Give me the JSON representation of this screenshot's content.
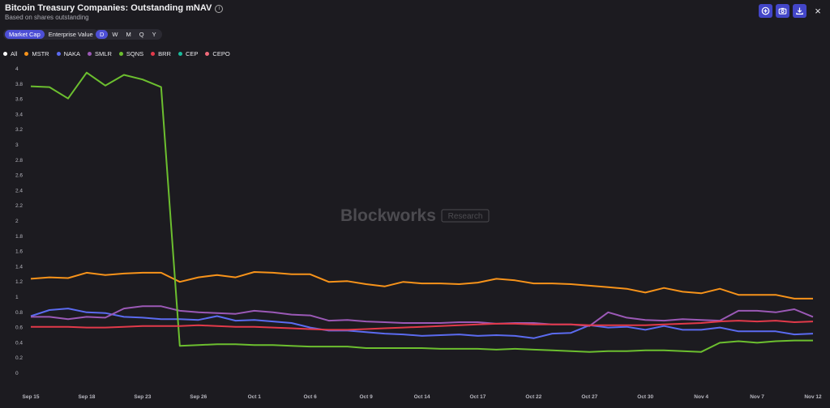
{
  "header": {
    "title": "Bitcoin Treasury Companies: Outstanding mNAV",
    "subtitle": "Based on shares outstanding"
  },
  "toolbar": {
    "icons": [
      "plus-circle-icon",
      "camera-icon",
      "download-icon",
      "close-icon"
    ],
    "close_label": "×"
  },
  "valuation_toggle": {
    "options": [
      "Market Cap",
      "Enterprise Value"
    ],
    "selected": "Market Cap"
  },
  "period_toggle": {
    "options": [
      "D",
      "W",
      "M",
      "Q",
      "Y"
    ],
    "selected": "D"
  },
  "legend_all": {
    "label": "All",
    "color": "#ffffff"
  },
  "watermark": {
    "brand": "Blockworks",
    "tag": "Research"
  },
  "chart_data": {
    "type": "line",
    "title": "Bitcoin Treasury Companies: Outstanding mNAV",
    "subtitle": "Based on shares outstanding",
    "ylim": [
      0,
      4
    ],
    "yticks": [
      "0",
      "0.2",
      "0.4",
      "0.6",
      "0.8",
      "1",
      "1.2",
      "1.4",
      "1.6",
      "1.8",
      "2",
      "2.2",
      "2.4",
      "2.6",
      "2.8",
      "3",
      "3.2",
      "3.4",
      "3.6",
      "3.8",
      "4"
    ],
    "x_tick_labels": [
      "Sep 15",
      "Sep 18",
      "Sep 23",
      "Sep 26",
      "Oct 1",
      "Oct 6",
      "Oct 9",
      "Oct 14",
      "Oct 17",
      "Oct 22",
      "Oct 27",
      "Oct 30",
      "Nov 4",
      "Nov 7",
      "Nov 12"
    ],
    "x_tick_indices": [
      0,
      3,
      6,
      9,
      12,
      15,
      18,
      21,
      24,
      27,
      30,
      33,
      36,
      39,
      42
    ],
    "n_points": 43,
    "grid": false,
    "legend_position": "top-left",
    "series": [
      {
        "name": "MSTR",
        "color": "#f7931a",
        "values": [
          1.24,
          1.26,
          1.25,
          1.32,
          1.29,
          1.31,
          1.32,
          1.32,
          1.2,
          1.26,
          1.29,
          1.26,
          1.33,
          1.32,
          1.3,
          1.3,
          1.2,
          1.21,
          1.17,
          1.14,
          1.2,
          1.18,
          1.18,
          1.17,
          1.19,
          1.24,
          1.22,
          1.18,
          1.18,
          1.17,
          1.15,
          1.13,
          1.11,
          1.06,
          1.12,
          1.07,
          1.05,
          1.11,
          1.03,
          1.03,
          1.03,
          0.98,
          0.98
        ]
      },
      {
        "name": "NAKA",
        "color": "#5b6bf0",
        "values": [
          0.75,
          0.83,
          0.85,
          0.8,
          0.79,
          0.74,
          0.73,
          0.71,
          0.71,
          0.7,
          0.75,
          0.69,
          0.7,
          0.68,
          0.66,
          0.6,
          0.56,
          0.56,
          0.54,
          0.52,
          0.51,
          0.49,
          0.5,
          0.51,
          0.49,
          0.5,
          0.49,
          0.46,
          0.52,
          0.53,
          0.63,
          0.6,
          0.61,
          0.57,
          0.62,
          0.57,
          0.57,
          0.6,
          0.55,
          0.55,
          0.55,
          0.51,
          0.52
        ]
      },
      {
        "name": "SMLR",
        "color": "#9b59b6",
        "values": [
          0.74,
          0.74,
          0.71,
          0.74,
          0.73,
          0.85,
          0.88,
          0.88,
          0.82,
          0.8,
          0.79,
          0.78,
          0.82,
          0.8,
          0.77,
          0.76,
          0.69,
          0.7,
          0.68,
          0.67,
          0.66,
          0.66,
          0.66,
          0.67,
          0.67,
          0.65,
          0.66,
          0.66,
          0.64,
          0.64,
          0.62,
          0.8,
          0.73,
          0.7,
          0.69,
          0.71,
          0.7,
          0.69,
          0.82,
          0.82,
          0.8,
          0.84,
          0.74
        ]
      },
      {
        "name": "SQNS",
        "color": "#6cbf2f",
        "values": [
          3.77,
          3.76,
          3.61,
          3.95,
          3.78,
          3.92,
          3.86,
          3.76,
          0.36,
          0.37,
          0.38,
          0.38,
          0.37,
          0.37,
          0.36,
          0.35,
          0.35,
          0.35,
          0.33,
          0.33,
          0.33,
          0.33,
          0.32,
          0.32,
          0.32,
          0.31,
          0.32,
          0.31,
          0.3,
          0.29,
          0.28,
          0.29,
          0.29,
          0.3,
          0.3,
          0.29,
          0.28,
          0.4,
          0.42,
          0.4,
          0.42,
          0.43,
          0.43
        ]
      },
      {
        "name": "BRR",
        "color": "#e23a4a",
        "values": [
          0.61,
          0.61,
          0.61,
          0.6,
          0.6,
          0.61,
          0.62,
          0.62,
          0.62,
          0.63,
          0.62,
          0.61,
          0.61,
          0.6,
          0.59,
          0.58,
          0.57,
          0.57,
          0.58,
          0.59,
          0.6,
          0.61,
          0.62,
          0.63,
          0.64,
          0.65,
          0.65,
          0.64,
          0.64,
          0.64,
          0.63,
          0.63,
          0.63,
          0.63,
          0.64,
          0.65,
          0.66,
          0.68,
          0.69,
          0.68,
          0.69,
          0.67,
          0.68
        ]
      },
      {
        "name": "CEP",
        "color": "#1abc9c",
        "values": []
      },
      {
        "name": "CEPO",
        "color": "#f06a7a",
        "values": []
      }
    ]
  }
}
